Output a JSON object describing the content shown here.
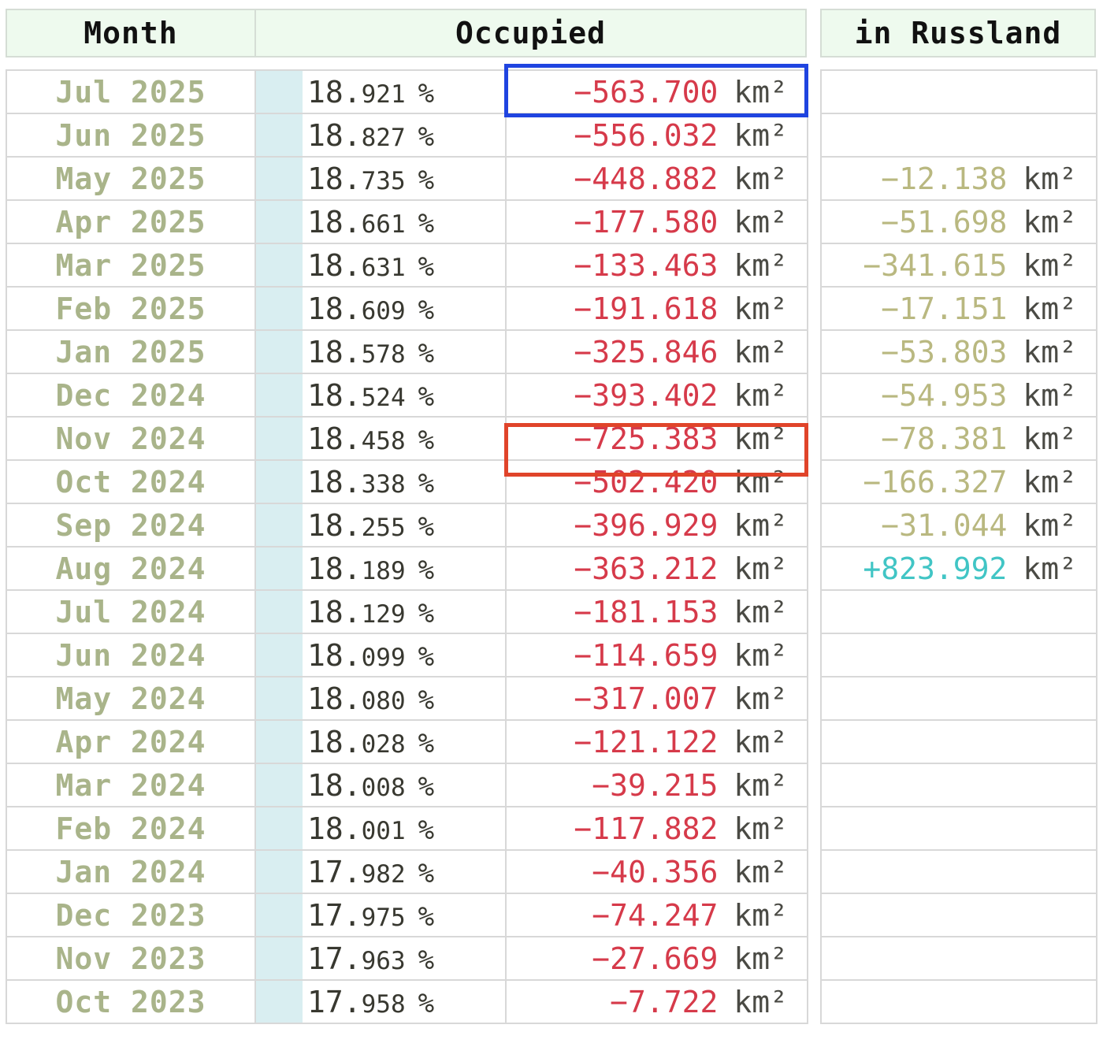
{
  "headers": {
    "month": "Month",
    "occupied": "Occupied",
    "russland": "in Russland"
  },
  "unit": "km²",
  "percent_sign": "%",
  "colors": {
    "negative_delta": "#d63a4a",
    "russland_negative": "#b9b880",
    "russland_positive": "#41c5c5",
    "highlight_blue": "#1f44e0",
    "highlight_red": "#e0442a"
  },
  "rows": [
    {
      "month": "Jul 2025",
      "pct_main": "18.",
      "pct_dec": "921",
      "delta": "−563.700",
      "ru": ""
    },
    {
      "month": "Jun 2025",
      "pct_main": "18.",
      "pct_dec": "827",
      "delta": "−556.032",
      "ru": ""
    },
    {
      "month": "May 2025",
      "pct_main": "18.",
      "pct_dec": "735",
      "delta": "−448.882",
      "ru": "−12.138"
    },
    {
      "month": "Apr 2025",
      "pct_main": "18.",
      "pct_dec": "661",
      "delta": "−177.580",
      "ru": "−51.698"
    },
    {
      "month": "Mar 2025",
      "pct_main": "18.",
      "pct_dec": "631",
      "delta": "−133.463",
      "ru": "−341.615"
    },
    {
      "month": "Feb 2025",
      "pct_main": "18.",
      "pct_dec": "609",
      "delta": "−191.618",
      "ru": "−17.151"
    },
    {
      "month": "Jan 2025",
      "pct_main": "18.",
      "pct_dec": "578",
      "delta": "−325.846",
      "ru": "−53.803"
    },
    {
      "month": "Dec 2024",
      "pct_main": "18.",
      "pct_dec": "524",
      "delta": "−393.402",
      "ru": "−54.953"
    },
    {
      "month": "Nov 2024",
      "pct_main": "18.",
      "pct_dec": "458",
      "delta": "−725.383",
      "ru": "−78.381"
    },
    {
      "month": "Oct 2024",
      "pct_main": "18.",
      "pct_dec": "338",
      "delta": "−502.420",
      "ru": "−166.327"
    },
    {
      "month": "Sep 2024",
      "pct_main": "18.",
      "pct_dec": "255",
      "delta": "−396.929",
      "ru": "−31.044"
    },
    {
      "month": "Aug 2024",
      "pct_main": "18.",
      "pct_dec": "189",
      "delta": "−363.212",
      "ru": "+823.992"
    },
    {
      "month": "Jul 2024",
      "pct_main": "18.",
      "pct_dec": "129",
      "delta": "−181.153",
      "ru": ""
    },
    {
      "month": "Jun 2024",
      "pct_main": "18.",
      "pct_dec": "099",
      "delta": "−114.659",
      "ru": ""
    },
    {
      "month": "May 2024",
      "pct_main": "18.",
      "pct_dec": "080",
      "delta": "−317.007",
      "ru": ""
    },
    {
      "month": "Apr 2024",
      "pct_main": "18.",
      "pct_dec": "028",
      "delta": "−121.122",
      "ru": ""
    },
    {
      "month": "Mar 2024",
      "pct_main": "18.",
      "pct_dec": "008",
      "delta": "−39.215",
      "ru": ""
    },
    {
      "month": "Feb 2024",
      "pct_main": "18.",
      "pct_dec": "001",
      "delta": "−117.882",
      "ru": ""
    },
    {
      "month": "Jan 2024",
      "pct_main": "17.",
      "pct_dec": "982",
      "delta": "−40.356",
      "ru": ""
    },
    {
      "month": "Dec 2023",
      "pct_main": "17.",
      "pct_dec": "975",
      "delta": "−74.247",
      "ru": ""
    },
    {
      "month": "Nov 2023",
      "pct_main": "17.",
      "pct_dec": "963",
      "delta": "−27.669",
      "ru": ""
    },
    {
      "month": "Oct 2023",
      "pct_main": "17.",
      "pct_dec": "958",
      "delta": "−7.722",
      "ru": ""
    }
  ]
}
